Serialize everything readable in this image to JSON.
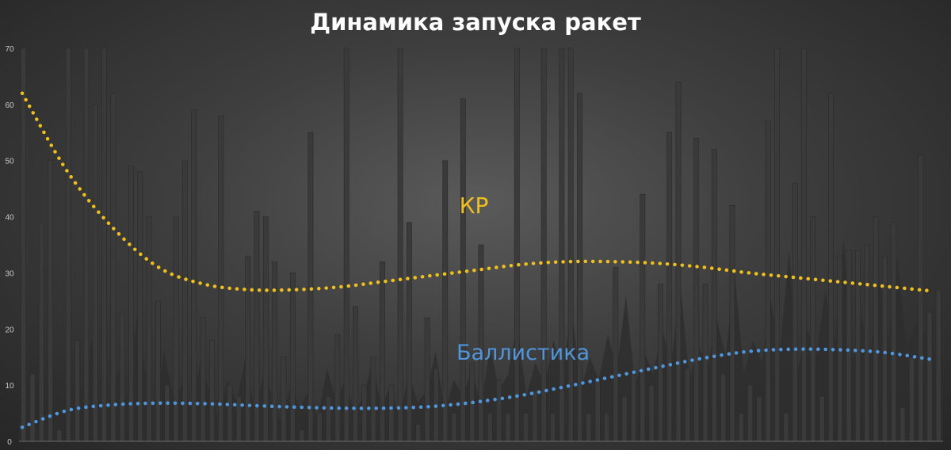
{
  "chart_data": {
    "type": "bar",
    "title": "Динамика запуска ракет",
    "xlabel": "",
    "ylabel": "",
    "ylim": [
      0,
      70
    ],
    "yticks": [
      0,
      10,
      20,
      30,
      40,
      50,
      60,
      70
    ],
    "grid": false,
    "legend": "none",
    "series": [
      {
        "name": "КР",
        "type": "bar",
        "color": "#3a3a3a",
        "values": [
          70,
          12,
          39,
          50,
          2,
          70,
          18,
          70,
          60,
          70,
          62,
          23,
          49,
          48,
          40,
          25,
          10,
          40,
          50,
          59,
          22,
          18,
          58,
          10,
          8,
          33,
          41,
          40,
          32,
          15,
          30,
          2,
          55,
          5,
          8,
          19,
          70,
          24,
          10,
          15,
          32,
          10,
          70,
          39,
          3,
          22,
          13,
          50,
          5,
          61,
          14,
          35,
          5,
          11,
          5,
          70,
          5,
          9,
          70,
          5,
          70,
          70,
          62,
          5,
          11,
          5,
          31,
          8,
          12,
          44,
          10,
          28,
          55,
          64,
          13,
          54,
          28,
          52,
          12,
          42,
          5,
          10,
          8,
          57,
          70,
          5,
          46,
          70,
          40,
          8,
          62,
          33,
          34,
          34,
          35,
          40,
          33,
          39,
          6,
          15,
          51,
          23,
          27
        ]
      },
      {
        "name": "Баллистика",
        "type": "area",
        "color": "#2e2e2e",
        "values": [
          3,
          8,
          2,
          5,
          11,
          3,
          9,
          2,
          18,
          6,
          4,
          13,
          7,
          22,
          12,
          5,
          16,
          8,
          10,
          6,
          14,
          9,
          4,
          11,
          7,
          15,
          5,
          12,
          8,
          3,
          10,
          6,
          9,
          4,
          13,
          7,
          11,
          5,
          8,
          14,
          6,
          10,
          4,
          12,
          7,
          9,
          16,
          5,
          11,
          8,
          13,
          6,
          17,
          9,
          12,
          21,
          8,
          14,
          10,
          18,
          12,
          24,
          9,
          15,
          11,
          19,
          13,
          26,
          10,
          16,
          12,
          20,
          14,
          28,
          11,
          17,
          13,
          22,
          15,
          30,
          12,
          18,
          14,
          25,
          16,
          34,
          13,
          20,
          15,
          27,
          17,
          36,
          14,
          22,
          16,
          29,
          18,
          33,
          15,
          21,
          19,
          17,
          9
        ]
      }
    ],
    "trendlines": [
      {
        "name": "КР",
        "label": "КР",
        "color": "#f0c01a",
        "x": [
          0,
          0.05,
          0.1,
          0.15,
          0.2,
          0.25,
          0.3,
          0.35,
          0.4,
          0.45,
          0.5,
          0.55,
          0.6,
          0.65,
          0.7,
          0.75,
          0.8,
          0.85,
          0.9,
          0.95,
          1.0
        ],
        "y": [
          62,
          48,
          38,
          31,
          28,
          27,
          27,
          27.5,
          28.5,
          29.5,
          30.5,
          31.5,
          32,
          32,
          31.7,
          31,
          30,
          29.2,
          28.4,
          27.6,
          26.8
        ]
      },
      {
        "name": "Баллистика",
        "label": "Баллистика",
        "color": "#4f97dc",
        "x": [
          0,
          0.05,
          0.1,
          0.15,
          0.2,
          0.25,
          0.3,
          0.35,
          0.4,
          0.45,
          0.5,
          0.55,
          0.6,
          0.65,
          0.7,
          0.75,
          0.8,
          0.85,
          0.9,
          0.95,
          1.0
        ],
        "y": [
          2.5,
          5.5,
          6.5,
          6.8,
          6.7,
          6.4,
          6.1,
          5.9,
          5.9,
          6.2,
          7,
          8.2,
          9.8,
          11.5,
          13.2,
          14.8,
          16,
          16.4,
          16.3,
          15.8,
          14.6
        ]
      }
    ]
  },
  "colors": {
    "title": "#ffffff",
    "tick_label": "#c8c8c8",
    "axis_line": "#6a6a6a"
  }
}
